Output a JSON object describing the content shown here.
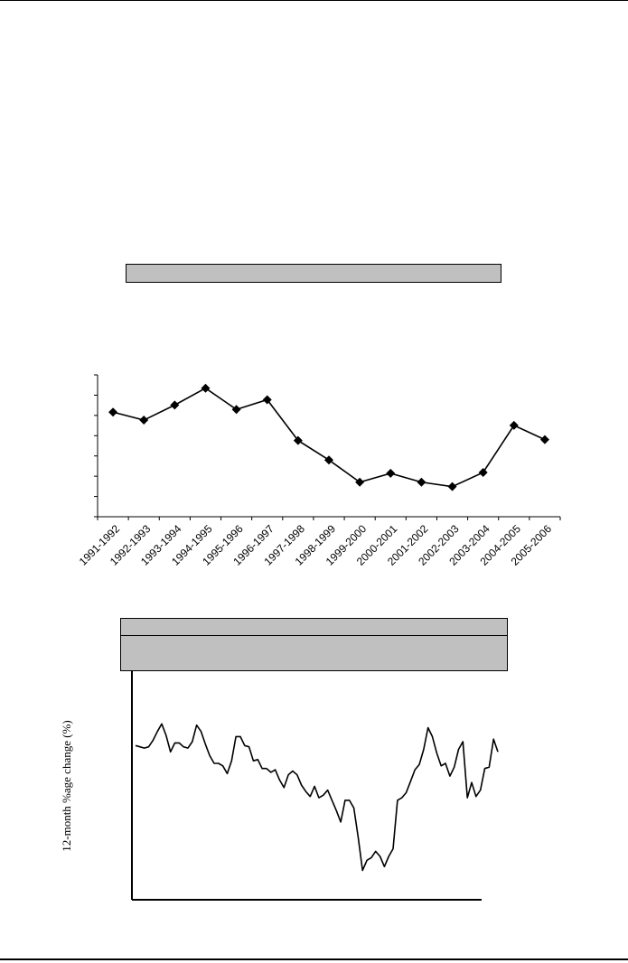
{
  "chart_data": [
    {
      "type": "line",
      "title": "",
      "xlabel": "",
      "ylabel": "",
      "categories": [
        "1991-1992",
        "1992-1993",
        "1993-1994",
        "1994-1995",
        "1995-1996",
        "1996-1997",
        "1997-1998",
        "1998-1999",
        "1999-2000",
        "2000-2001",
        "2001-2002",
        "2002-2003",
        "2003-2004",
        "2004-2005",
        "2005-2006"
      ],
      "series": [
        {
          "values": [
            11.8,
            10.9,
            12.6,
            14.5,
            12.1,
            13.2,
            8.6,
            6.4,
            3.9,
            4.9,
            3.9,
            3.4,
            5.0,
            10.3,
            8.7
          ]
        }
      ],
      "ylim": [
        0,
        16
      ],
      "marker": "diamond",
      "grid": false
    },
    {
      "type": "line",
      "title": "",
      "xlabel": "",
      "ylabel": "12-month %age change (%)",
      "series": [
        {
          "values": [
            12.1,
            12.0,
            11.9,
            12.0,
            12.5,
            13.2,
            13.8,
            12.9,
            11.6,
            12.3,
            12.3,
            12.0,
            11.9,
            12.4,
            13.7,
            13.2,
            12.2,
            11.3,
            10.7,
            10.7,
            10.5,
            9.9,
            10.9,
            12.8,
            12.8,
            12.1,
            12.0,
            10.9,
            11.0,
            10.3,
            10.3,
            10.0,
            10.2,
            9.4,
            8.8,
            9.8,
            10.1,
            9.8,
            9.0,
            8.5,
            8.1,
            8.9,
            8.0,
            8.2,
            8.6,
            7.8,
            7.0,
            6.1,
            7.8,
            7.8,
            7.2,
            4.9,
            2.3,
            3.1,
            3.3,
            3.8,
            3.4,
            2.6,
            3.4,
            4.0,
            7.8,
            8.0,
            8.4,
            9.3,
            10.2,
            10.6,
            11.8,
            13.5,
            12.8,
            11.5,
            10.5,
            10.7,
            9.7,
            10.4,
            11.8,
            12.4,
            8.0,
            9.2,
            8.1,
            8.6,
            10.3,
            10.4,
            12.6,
            11.6
          ]
        }
      ],
      "grid": false
    }
  ]
}
